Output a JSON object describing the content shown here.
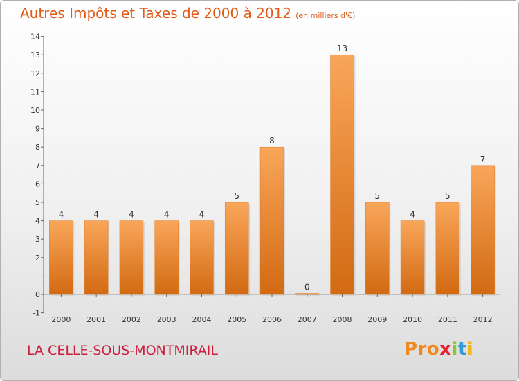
{
  "chart_data": {
    "type": "bar",
    "title": "Autres Impôts et Taxes de 2000 à 2012",
    "subtitle": "(en milliers d'€)",
    "categories": [
      "2000",
      "2001",
      "2002",
      "2003",
      "2004",
      "2005",
      "2006",
      "2007",
      "2008",
      "2009",
      "2010",
      "2011",
      "2012"
    ],
    "values": [
      4,
      4,
      4,
      4,
      4,
      5,
      8,
      0,
      13,
      5,
      4,
      5,
      7
    ],
    "ylim": [
      -1,
      14
    ],
    "yticks": [
      -1,
      0,
      1,
      2,
      3,
      4,
      5,
      6,
      7,
      8,
      9,
      10,
      11,
      12,
      13,
      14
    ],
    "ytick_labels": [
      "-1",
      "0",
      "",
      "2",
      "3",
      "4",
      "5",
      "6",
      "7",
      "8",
      "9",
      "10",
      "11",
      "12",
      "13",
      "14"
    ],
    "grid": false,
    "bar_color": "#f08c32"
  },
  "footer": {
    "commune": "LA CELLE-SOUS-MONTMIRAIL",
    "logo": [
      "Pro",
      "x",
      "i",
      "t",
      "i"
    ]
  }
}
